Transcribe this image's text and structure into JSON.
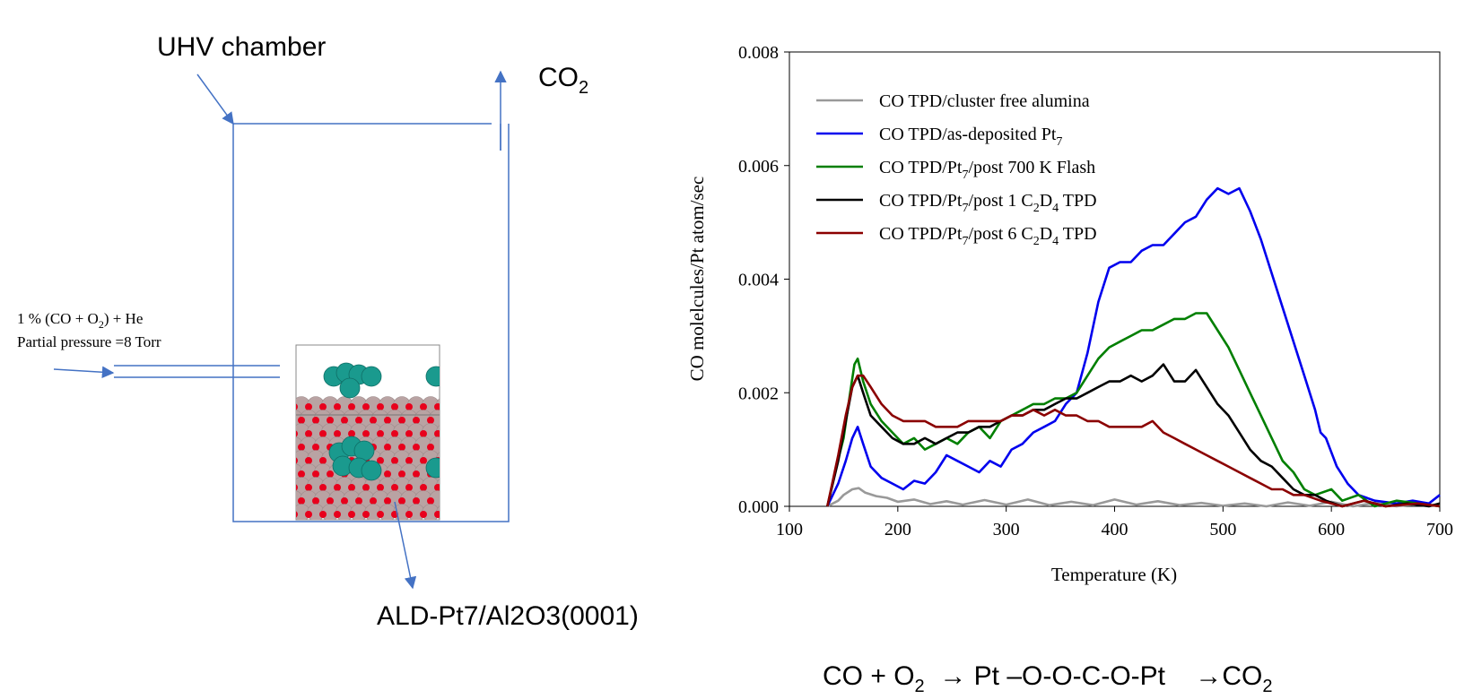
{
  "schematic": {
    "chamber_label": "UHV chamber",
    "outlet_label_main": "CO",
    "outlet_label_sub": "2",
    "inlet_line1_a": "1 % (CO  + O",
    "inlet_line1_sub": "2",
    "inlet_line1_b": ") + He",
    "inlet_line2": "Partial pressure =8 Torr",
    "sample_label": "ALD-Pt7/Al2O3(0001)"
  },
  "reaction": {
    "part1": "CO + O",
    "sub1": "2",
    "part2": "  → Pt –O-O-C-O-Pt    →CO",
    "sub2": "2"
  },
  "colors": {
    "line_blue": "#4472c4",
    "cluster_teal": "#1a9a8e",
    "oxygen_red": "#e8001c",
    "aluminium_gray": "#b9a3a3"
  },
  "chart_data": {
    "type": "line",
    "xlabel": "Temperature (K)",
    "ylabel": "CO molelcules/Pt atom/sec",
    "xlim": [
      100,
      700
    ],
    "ylim": [
      0,
      0.008
    ],
    "xticks": [
      "100",
      "200",
      "300",
      "400",
      "500",
      "600",
      "700"
    ],
    "yticks": [
      "0.000",
      "0.002",
      "0.004",
      "0.006",
      "0.008"
    ],
    "grid": false,
    "legend_position": "top-left",
    "series": [
      {
        "name": "CO TPD/cluster free alumina",
        "legend": [
          {
            "t": "CO TPD/cluster free alumina"
          }
        ],
        "color": "#999999",
        "points": [
          [
            135,
            0
          ],
          [
            145,
            0.0001
          ],
          [
            150,
            0.0002
          ],
          [
            158,
            0.0003
          ],
          [
            164,
            0.00032
          ],
          [
            170,
            0.00024
          ],
          [
            180,
            0.00018
          ],
          [
            190,
            0.00015
          ],
          [
            200,
            8e-05
          ],
          [
            215,
            0.00012
          ],
          [
            230,
            4e-05
          ],
          [
            245,
            9e-05
          ],
          [
            260,
            3e-05
          ],
          [
            280,
            0.00011
          ],
          [
            300,
            3e-05
          ],
          [
            320,
            0.00012
          ],
          [
            340,
            2e-05
          ],
          [
            360,
            8e-05
          ],
          [
            380,
            2e-05
          ],
          [
            400,
            0.00012
          ],
          [
            420,
            3e-05
          ],
          [
            440,
            9e-05
          ],
          [
            460,
            2e-05
          ],
          [
            480,
            6e-05
          ],
          [
            500,
            1e-05
          ],
          [
            520,
            5e-05
          ],
          [
            540,
            0
          ],
          [
            560,
            7e-05
          ],
          [
            580,
            1e-05
          ],
          [
            600,
            8e-05
          ],
          [
            620,
            0
          ],
          [
            640,
            6e-05
          ],
          [
            660,
            0
          ],
          [
            680,
            4e-05
          ],
          [
            700,
            2e-05
          ]
        ]
      },
      {
        "name": "CO TPD/as-deposited Pt7",
        "legend": [
          {
            "t": "CO TPD/as-deposited Pt"
          },
          {
            "t": "7",
            "sub": true
          }
        ],
        "color": "#0000ee",
        "points": [
          [
            135,
            0
          ],
          [
            145,
            0.0004
          ],
          [
            152,
            0.0008
          ],
          [
            158,
            0.0012
          ],
          [
            163,
            0.0014
          ],
          [
            168,
            0.0011
          ],
          [
            175,
            0.0007
          ],
          [
            185,
            0.0005
          ],
          [
            195,
            0.0004
          ],
          [
            205,
            0.0003
          ],
          [
            215,
            0.00045
          ],
          [
            225,
            0.0004
          ],
          [
            235,
            0.0006
          ],
          [
            245,
            0.0009
          ],
          [
            255,
            0.0008
          ],
          [
            265,
            0.0007
          ],
          [
            275,
            0.0006
          ],
          [
            285,
            0.0008
          ],
          [
            295,
            0.0007
          ],
          [
            305,
            0.001
          ],
          [
            315,
            0.0011
          ],
          [
            325,
            0.0013
          ],
          [
            335,
            0.0014
          ],
          [
            345,
            0.0015
          ],
          [
            355,
            0.0018
          ],
          [
            365,
            0.002
          ],
          [
            375,
            0.0027
          ],
          [
            385,
            0.0036
          ],
          [
            395,
            0.0042
          ],
          [
            405,
            0.0043
          ],
          [
            415,
            0.0043
          ],
          [
            425,
            0.0045
          ],
          [
            435,
            0.0046
          ],
          [
            445,
            0.0046
          ],
          [
            455,
            0.0048
          ],
          [
            465,
            0.005
          ],
          [
            475,
            0.0051
          ],
          [
            485,
            0.0054
          ],
          [
            495,
            0.0056
          ],
          [
            505,
            0.0055
          ],
          [
            515,
            0.0056
          ],
          [
            525,
            0.0052
          ],
          [
            535,
            0.0047
          ],
          [
            545,
            0.0041
          ],
          [
            555,
            0.0035
          ],
          [
            565,
            0.0029
          ],
          [
            575,
            0.0023
          ],
          [
            585,
            0.0017
          ],
          [
            590,
            0.0013
          ],
          [
            595,
            0.0012
          ],
          [
            605,
            0.0007
          ],
          [
            615,
            0.0004
          ],
          [
            625,
            0.0002
          ],
          [
            640,
            0.0001
          ],
          [
            660,
            5e-05
          ],
          [
            675,
            0.0001
          ],
          [
            690,
            5e-05
          ],
          [
            700,
            0.0002
          ]
        ]
      },
      {
        "name": "CO TPD/Pt7/post 700 K Flash",
        "legend": [
          {
            "t": "CO TPD/Pt"
          },
          {
            "t": "7",
            "sub": true
          },
          {
            "t": "/post 700 K Flash"
          }
        ],
        "color": "#007f00",
        "points": [
          [
            135,
            0
          ],
          [
            142,
            0.0006
          ],
          [
            150,
            0.0012
          ],
          [
            156,
            0.002
          ],
          [
            160,
            0.0025
          ],
          [
            163,
            0.0026
          ],
          [
            168,
            0.0022
          ],
          [
            175,
            0.0018
          ],
          [
            185,
            0.0015
          ],
          [
            195,
            0.0013
          ],
          [
            205,
            0.0011
          ],
          [
            215,
            0.0012
          ],
          [
            225,
            0.001
          ],
          [
            235,
            0.0011
          ],
          [
            245,
            0.0012
          ],
          [
            255,
            0.0011
          ],
          [
            265,
            0.0013
          ],
          [
            275,
            0.0014
          ],
          [
            285,
            0.0012
          ],
          [
            295,
            0.0015
          ],
          [
            305,
            0.0016
          ],
          [
            315,
            0.0017
          ],
          [
            325,
            0.0018
          ],
          [
            335,
            0.0018
          ],
          [
            345,
            0.0019
          ],
          [
            355,
            0.0019
          ],
          [
            365,
            0.002
          ],
          [
            375,
            0.0023
          ],
          [
            385,
            0.0026
          ],
          [
            395,
            0.0028
          ],
          [
            405,
            0.0029
          ],
          [
            415,
            0.003
          ],
          [
            425,
            0.0031
          ],
          [
            435,
            0.0031
          ],
          [
            445,
            0.0032
          ],
          [
            455,
            0.0033
          ],
          [
            465,
            0.0033
          ],
          [
            475,
            0.0034
          ],
          [
            485,
            0.0034
          ],
          [
            495,
            0.0031
          ],
          [
            505,
            0.0028
          ],
          [
            515,
            0.0024
          ],
          [
            525,
            0.002
          ],
          [
            535,
            0.0016
          ],
          [
            545,
            0.0012
          ],
          [
            555,
            0.0008
          ],
          [
            565,
            0.0006
          ],
          [
            575,
            0.0003
          ],
          [
            585,
            0.0002
          ],
          [
            600,
            0.0003
          ],
          [
            610,
            0.0001
          ],
          [
            625,
            0.0002
          ],
          [
            640,
            0
          ],
          [
            660,
            0.0001
          ],
          [
            680,
            5e-05
          ],
          [
            700,
            0
          ]
        ]
      },
      {
        "name": "CO TPD/Pt7/post 1 C2D4 TPD",
        "legend": [
          {
            "t": "CO TPD/Pt"
          },
          {
            "t": "7",
            "sub": true
          },
          {
            "t": "/post 1 C"
          },
          {
            "t": "2",
            "sub": true
          },
          {
            "t": "D"
          },
          {
            "t": "4",
            "sub": true
          },
          {
            "t": " TPD"
          }
        ],
        "color": "#000000",
        "points": [
          [
            135,
            0
          ],
          [
            145,
            0.0008
          ],
          [
            152,
            0.0015
          ],
          [
            158,
            0.0021
          ],
          [
            163,
            0.0023
          ],
          [
            168,
            0.002
          ],
          [
            175,
            0.0016
          ],
          [
            185,
            0.0014
          ],
          [
            195,
            0.0012
          ],
          [
            205,
            0.0011
          ],
          [
            215,
            0.0011
          ],
          [
            225,
            0.0012
          ],
          [
            235,
            0.0011
          ],
          [
            245,
            0.0012
          ],
          [
            255,
            0.0013
          ],
          [
            265,
            0.0013
          ],
          [
            275,
            0.0014
          ],
          [
            285,
            0.0014
          ],
          [
            295,
            0.0015
          ],
          [
            305,
            0.0016
          ],
          [
            315,
            0.0016
          ],
          [
            325,
            0.0017
          ],
          [
            335,
            0.0017
          ],
          [
            345,
            0.0018
          ],
          [
            355,
            0.0019
          ],
          [
            365,
            0.0019
          ],
          [
            375,
            0.002
          ],
          [
            385,
            0.0021
          ],
          [
            395,
            0.0022
          ],
          [
            405,
            0.0022
          ],
          [
            415,
            0.0023
          ],
          [
            425,
            0.0022
          ],
          [
            435,
            0.0023
          ],
          [
            445,
            0.0025
          ],
          [
            455,
            0.0022
          ],
          [
            465,
            0.0022
          ],
          [
            475,
            0.0024
          ],
          [
            485,
            0.0021
          ],
          [
            495,
            0.0018
          ],
          [
            505,
            0.0016
          ],
          [
            515,
            0.0013
          ],
          [
            525,
            0.001
          ],
          [
            535,
            0.0008
          ],
          [
            545,
            0.0007
          ],
          [
            555,
            0.0005
          ],
          [
            565,
            0.0003
          ],
          [
            575,
            0.0002
          ],
          [
            585,
            0.0002
          ],
          [
            595,
            0.0001
          ],
          [
            610,
            0
          ],
          [
            630,
            0.0001
          ],
          [
            650,
            0
          ],
          [
            670,
            5e-05
          ],
          [
            690,
            0
          ],
          [
            700,
            5e-05
          ]
        ]
      },
      {
        "name": "CO TPD/Pt7/post 6 C2D4 TPD",
        "legend": [
          {
            "t": "CO TPD/Pt"
          },
          {
            "t": "7",
            "sub": true
          },
          {
            "t": "/post 6 C"
          },
          {
            "t": "2",
            "sub": true
          },
          {
            "t": "D"
          },
          {
            "t": "4",
            "sub": true
          },
          {
            "t": " TPD"
          }
        ],
        "color": "#8b0000",
        "points": [
          [
            135,
            0
          ],
          [
            145,
            0.0009
          ],
          [
            152,
            0.0016
          ],
          [
            158,
            0.0021
          ],
          [
            163,
            0.0023
          ],
          [
            168,
            0.0023
          ],
          [
            175,
            0.0021
          ],
          [
            185,
            0.0018
          ],
          [
            195,
            0.0016
          ],
          [
            205,
            0.0015
          ],
          [
            215,
            0.0015
          ],
          [
            225,
            0.0015
          ],
          [
            235,
            0.0014
          ],
          [
            245,
            0.0014
          ],
          [
            255,
            0.0014
          ],
          [
            265,
            0.0015
          ],
          [
            275,
            0.0015
          ],
          [
            285,
            0.0015
          ],
          [
            295,
            0.0015
          ],
          [
            305,
            0.0016
          ],
          [
            315,
            0.0016
          ],
          [
            325,
            0.0017
          ],
          [
            335,
            0.0016
          ],
          [
            345,
            0.0017
          ],
          [
            355,
            0.0016
          ],
          [
            365,
            0.0016
          ],
          [
            375,
            0.0015
          ],
          [
            385,
            0.0015
          ],
          [
            395,
            0.0014
          ],
          [
            405,
            0.0014
          ],
          [
            415,
            0.0014
          ],
          [
            425,
            0.0014
          ],
          [
            435,
            0.0015
          ],
          [
            445,
            0.0013
          ],
          [
            455,
            0.0012
          ],
          [
            465,
            0.0011
          ],
          [
            475,
            0.001
          ],
          [
            485,
            0.0009
          ],
          [
            495,
            0.0008
          ],
          [
            505,
            0.0007
          ],
          [
            515,
            0.0006
          ],
          [
            525,
            0.0005
          ],
          [
            535,
            0.0004
          ],
          [
            545,
            0.0003
          ],
          [
            555,
            0.0003
          ],
          [
            565,
            0.0002
          ],
          [
            575,
            0.0002
          ],
          [
            590,
            0.0001
          ],
          [
            610,
            0
          ],
          [
            630,
            0.0001
          ],
          [
            650,
            0
          ],
          [
            680,
            5e-05
          ],
          [
            700,
            0
          ]
        ]
      }
    ]
  }
}
